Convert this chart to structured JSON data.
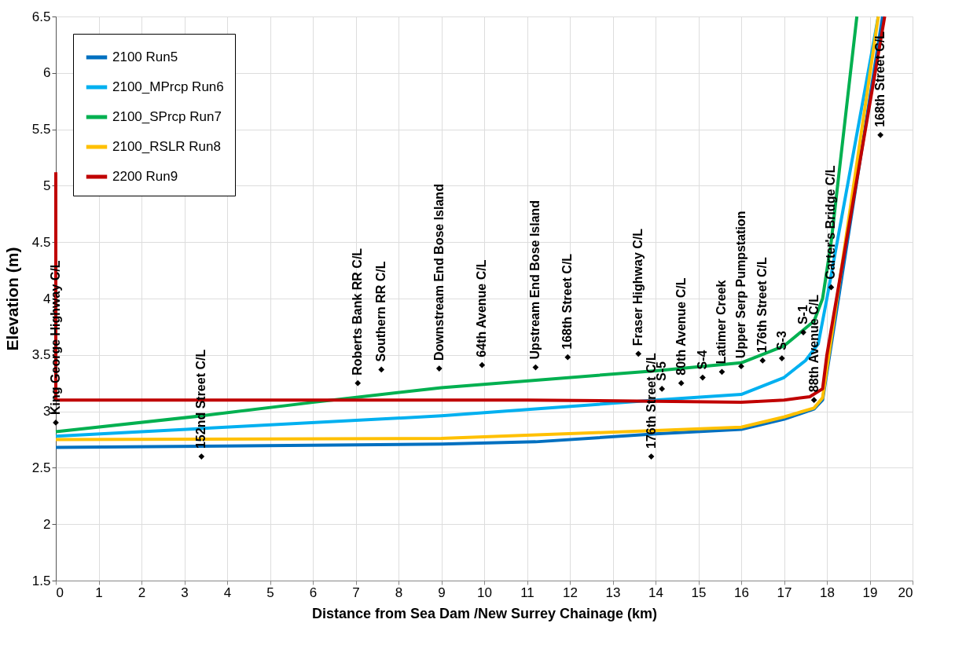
{
  "chart_data": {
    "type": "line",
    "xlabel": "Distance from Sea Dam /New Surrey Chainage (km)",
    "ylabel": "Elevation (m)",
    "xlim": [
      0,
      20
    ],
    "xticks": [
      0,
      1,
      2,
      3,
      4,
      5,
      6,
      7,
      8,
      9,
      10,
      11,
      12,
      13,
      14,
      15,
      16,
      17,
      18,
      19,
      20
    ],
    "ylim": [
      1.5,
      6.5
    ],
    "yticks": [
      1.5,
      2,
      2.5,
      3,
      3.5,
      4,
      4.5,
      5,
      5.5,
      6,
      6.5
    ],
    "grid": true,
    "legend": "top left",
    "line_style": "solid",
    "marker": "none",
    "series": [
      {
        "name": "2100 Run5",
        "color": "#0070c0",
        "x": [
          0,
          9,
          11.2,
          14,
          16,
          17,
          17.7,
          17.9,
          19.3
        ],
        "values": [
          2.68,
          2.71,
          2.73,
          2.8,
          2.84,
          2.93,
          3.02,
          3.1,
          6.5
        ]
      },
      {
        "name": "2100_MPrcp Run6",
        "color": "#00b0f0",
        "x": [
          0,
          9,
          14,
          16,
          17,
          17.5,
          17.8,
          18,
          19.2
        ],
        "values": [
          2.78,
          2.96,
          3.1,
          3.15,
          3.3,
          3.45,
          3.6,
          4.0,
          6.5
        ]
      },
      {
        "name": "2100_SPrcp Run7",
        "color": "#00b050",
        "x": [
          0,
          3.4,
          6,
          9,
          14,
          16,
          17,
          17.7,
          17.9,
          18.1,
          18.7
        ],
        "values": [
          2.82,
          2.96,
          3.08,
          3.21,
          3.36,
          3.43,
          3.58,
          3.8,
          4.0,
          4.5,
          6.5
        ]
      },
      {
        "name": "2100_RSLR Run8",
        "color": "#ffc000",
        "x": [
          0,
          9,
          14,
          16,
          17,
          17.7,
          17.9,
          19.2
        ],
        "values": [
          2.75,
          2.76,
          2.83,
          2.86,
          2.95,
          3.03,
          3.12,
          6.5
        ]
      },
      {
        "name": "2200 Run9",
        "color": "#c00000",
        "x": [
          0,
          0,
          11,
          14,
          16,
          17,
          17.6,
          17.9,
          18,
          19.35
        ],
        "values": [
          5.12,
          3.1,
          3.1,
          3.09,
          3.08,
          3.1,
          3.13,
          3.2,
          3.5,
          6.5
        ]
      },
      {
        "type": "scatter",
        "color": "#000000",
        "marker": "diamond",
        "x": [
          0,
          3.4,
          7.05,
          7.6,
          8.95,
          9.95,
          11.2,
          11.95,
          13.6,
          13.9,
          14.15,
          14.6,
          15.1,
          15.55,
          16,
          16.5,
          16.95,
          17.45,
          17.7,
          18.1,
          19.25
        ],
        "values": [
          2.9,
          2.6,
          3.25,
          3.37,
          3.38,
          3.41,
          3.39,
          3.48,
          3.51,
          2.6,
          3.2,
          3.25,
          3.3,
          3.35,
          3.4,
          3.45,
          3.47,
          3.7,
          3.1,
          4.1,
          5.45
        ]
      }
    ],
    "annotations": [
      {
        "text": "King George Highway C/L",
        "x": 0,
        "y": 2.9
      },
      {
        "text": "152nd Street C/L",
        "x": 3.4,
        "y": 2.6
      },
      {
        "text": "Roberts Bank RR C/L",
        "x": 7.05,
        "y": 3.25
      },
      {
        "text": "Southern RR C/L",
        "x": 7.6,
        "y": 3.37
      },
      {
        "text": "Downstream End Bose Island",
        "x": 8.95,
        "y": 3.38
      },
      {
        "text": "64th Avenue C/L",
        "x": 9.95,
        "y": 3.41
      },
      {
        "text": "Upstream End Bose Island",
        "x": 11.2,
        "y": 3.39
      },
      {
        "text": "168th Street C/L",
        "x": 11.95,
        "y": 3.48
      },
      {
        "text": "Fraser Highway C/L",
        "x": 13.6,
        "y": 3.51
      },
      {
        "text": "176th Street C/L",
        "x": 13.9,
        "y": 2.6
      },
      {
        "text": "S-5",
        "x": 14.15,
        "y": 3.2
      },
      {
        "text": "80th Avenue C/L",
        "x": 14.6,
        "y": 3.25
      },
      {
        "text": "S-4",
        "x": 15.1,
        "y": 3.3
      },
      {
        "text": "Latimer Creek",
        "x": 15.55,
        "y": 3.35
      },
      {
        "text": "Upper Serp Pumpstation",
        "x": 16,
        "y": 3.4
      },
      {
        "text": "176th Street C/L",
        "x": 16.5,
        "y": 3.45
      },
      {
        "text": "S-3",
        "x": 16.95,
        "y": 3.47
      },
      {
        "text": "S-1",
        "x": 17.45,
        "y": 3.7
      },
      {
        "text": "88th Avenue C/L",
        "x": 17.7,
        "y": 3.1
      },
      {
        "text": "Carter's Bridge C/L",
        "x": 18.1,
        "y": 4.1
      },
      {
        "text": "168th Street C/L",
        "x": 19.25,
        "y": 5.45
      }
    ]
  }
}
